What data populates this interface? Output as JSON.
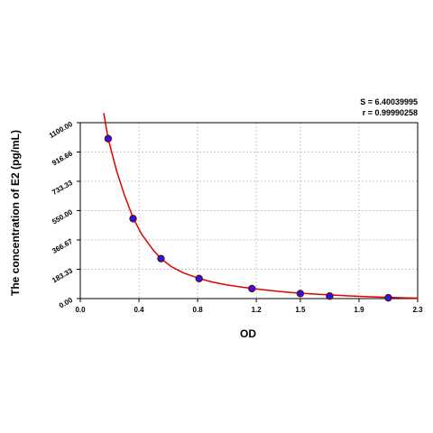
{
  "stats": {
    "s_label": "S = 6.40039995",
    "r_label": "r = 0.99990258"
  },
  "chart_data": {
    "type": "scatter",
    "xlabel": "OD",
    "ylabel": "The concentration of E2 (pg/mL)",
    "xlim": [
      0.0,
      2.3
    ],
    "ylim": [
      0.0,
      1100.0
    ],
    "x_ticks": [
      0.0,
      0.4,
      0.8,
      1.2,
      1.5,
      1.9,
      2.3
    ],
    "x_tick_labels": [
      "0.0",
      "0.4",
      "0.8",
      "1.2",
      "1.5",
      "1.9",
      "2.3"
    ],
    "y_ticks": [
      0.0,
      183.33,
      366.67,
      550.0,
      733.33,
      916.66,
      1100.0
    ],
    "y_tick_labels": [
      "0.00",
      "183.33",
      "366.67",
      "550.00",
      "733.33",
      "916.66",
      "1100.00"
    ],
    "grid": true,
    "series": [
      {
        "type": "scatter",
        "color": "#1a1aff",
        "marker_edge": "#7a0000",
        "points": [
          {
            "x": 0.19,
            "y": 1000
          },
          {
            "x": 0.36,
            "y": 500
          },
          {
            "x": 0.55,
            "y": 250
          },
          {
            "x": 0.81,
            "y": 125
          },
          {
            "x": 1.17,
            "y": 62.5
          },
          {
            "x": 1.5,
            "y": 31.25
          },
          {
            "x": 1.7,
            "y": 15.6
          },
          {
            "x": 2.1,
            "y": 5
          }
        ]
      },
      {
        "type": "line",
        "color": "#e00000",
        "points": [
          {
            "x": 0.16,
            "y": 1160
          },
          {
            "x": 0.19,
            "y": 1000
          },
          {
            "x": 0.25,
            "y": 790
          },
          {
            "x": 0.3,
            "y": 650
          },
          {
            "x": 0.36,
            "y": 505
          },
          {
            "x": 0.42,
            "y": 400
          },
          {
            "x": 0.5,
            "y": 300
          },
          {
            "x": 0.55,
            "y": 250
          },
          {
            "x": 0.62,
            "y": 200
          },
          {
            "x": 0.7,
            "y": 162
          },
          {
            "x": 0.81,
            "y": 126
          },
          {
            "x": 0.9,
            "y": 104
          },
          {
            "x": 1.0,
            "y": 85
          },
          {
            "x": 1.1,
            "y": 72
          },
          {
            "x": 1.17,
            "y": 63
          },
          {
            "x": 1.3,
            "y": 50
          },
          {
            "x": 1.4,
            "y": 41
          },
          {
            "x": 1.5,
            "y": 34
          },
          {
            "x": 1.6,
            "y": 28
          },
          {
            "x": 1.7,
            "y": 23
          },
          {
            "x": 1.8,
            "y": 18
          },
          {
            "x": 1.9,
            "y": 14
          },
          {
            "x": 2.0,
            "y": 11
          },
          {
            "x": 2.1,
            "y": 8
          },
          {
            "x": 2.2,
            "y": 5
          },
          {
            "x": 2.3,
            "y": 3
          }
        ]
      }
    ]
  }
}
